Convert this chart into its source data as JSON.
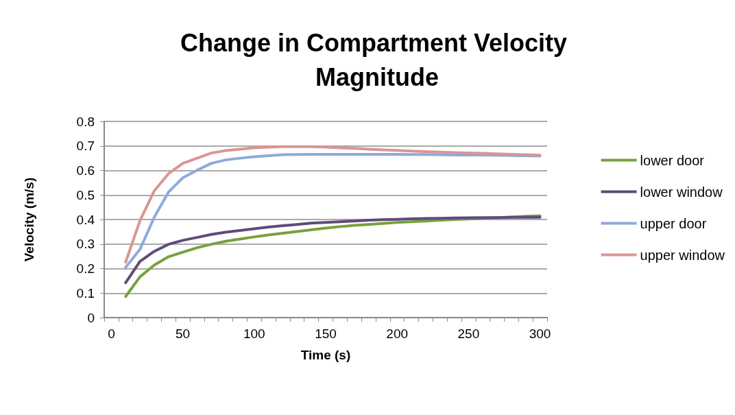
{
  "chart_data": {
    "type": "line",
    "title": "Change in Compartment Velocity Magnitude",
    "xlabel": "Time (s)",
    "ylabel": "Velocity (m/s)",
    "categories": [
      "0",
      null,
      null,
      null,
      null,
      "50",
      null,
      null,
      null,
      null,
      "100",
      null,
      null,
      null,
      null,
      "150",
      null,
      null,
      null,
      null,
      "200",
      null,
      null,
      null,
      null,
      "250",
      null,
      null,
      null,
      null,
      "300"
    ],
    "series": [
      {
        "name": "lower door",
        "color": "#77a13c",
        "values": [
          null,
          0.086,
          0.166,
          0.214,
          0.248,
          0.267,
          0.285,
          0.299,
          0.311,
          0.32,
          0.329,
          0.337,
          0.344,
          0.351,
          0.358,
          0.365,
          0.371,
          0.376,
          0.38,
          0.384,
          0.388,
          0.391,
          0.394,
          0.397,
          0.4,
          0.402,
          0.405,
          0.408,
          0.41,
          0.413,
          0.415
        ]
      },
      {
        "name": "lower window",
        "color": "#604a7b",
        "values": [
          null,
          0.142,
          0.229,
          0.27,
          0.299,
          0.315,
          0.327,
          0.339,
          0.348,
          0.355,
          0.362,
          0.369,
          0.375,
          0.38,
          0.385,
          0.388,
          0.391,
          0.394,
          0.397,
          0.399,
          0.401,
          0.403,
          0.404,
          0.405,
          0.406,
          0.407,
          0.408,
          0.408,
          0.409,
          0.409,
          0.409
        ]
      },
      {
        "name": "upper door",
        "color": "#8eaadb",
        "values": [
          null,
          0.205,
          0.278,
          0.409,
          0.512,
          0.57,
          0.601,
          0.629,
          0.643,
          0.65,
          0.656,
          0.66,
          0.664,
          0.665,
          0.666,
          0.666,
          0.666,
          0.666,
          0.666,
          0.666,
          0.666,
          0.665,
          0.665,
          0.664,
          0.663,
          0.663,
          0.663,
          0.662,
          0.661,
          0.66,
          0.659
        ]
      },
      {
        "name": "upper window",
        "color": "#d99694",
        "values": [
          null,
          0.226,
          0.395,
          0.517,
          0.587,
          0.629,
          0.65,
          0.671,
          0.681,
          0.687,
          0.692,
          0.695,
          0.697,
          0.697,
          0.697,
          0.695,
          0.692,
          0.69,
          0.687,
          0.684,
          0.682,
          0.679,
          0.677,
          0.675,
          0.673,
          0.671,
          0.67,
          0.668,
          0.666,
          0.664,
          0.662
        ]
      }
    ],
    "ylim": [
      0,
      0.8
    ],
    "yticks": [
      0,
      0.1,
      0.2,
      0.3,
      0.4,
      0.5,
      0.6,
      0.7,
      0.8
    ],
    "grid": "y",
    "legend": "right",
    "marker": "none",
    "line_style": "solid"
  }
}
